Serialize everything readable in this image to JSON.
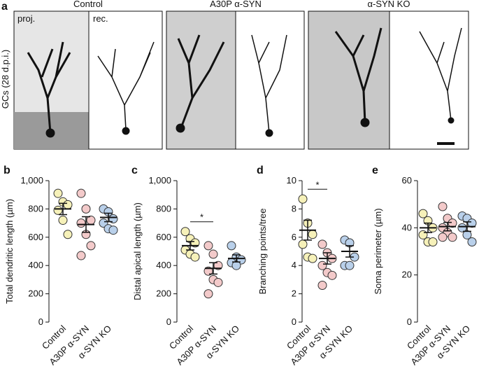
{
  "panel_a": {
    "panel": "a",
    "conditions": [
      "Control",
      "A30P α-SYN",
      "α-SYN KO"
    ],
    "y_label": "GCs (28 d.p.i.)",
    "proj_label": "proj.",
    "rec_label": "rec."
  },
  "chart_data": [
    {
      "type": "dotplot",
      "panel": "b",
      "y_label": "Total dendritic length (µm)",
      "categories": [
        "Control",
        "A30P α-SYN",
        "α-SYN KO"
      ],
      "colors": [
        "#f6f1b9",
        "#f3caca",
        "#b9d0ea"
      ],
      "points": [
        [
          910,
          850,
          830,
          790,
          720,
          620
        ],
        [
          910,
          800,
          720,
          700,
          620,
          540,
          470
        ],
        [
          800,
          780,
          730,
          700,
          660,
          650
        ]
      ],
      "means": [
        800,
        690,
        740
      ],
      "sems": [
        40,
        55,
        30
      ],
      "ylim": [
        0,
        1000
      ],
      "yticks": [
        0,
        200,
        400,
        600,
        800,
        {
          "value": 1000,
          "label": "1,000"
        }
      ]
    },
    {
      "type": "dotplot",
      "panel": "c",
      "y_label": "Distal apical length (µm)",
      "annotation": "*",
      "categories": [
        "Control",
        "A30P α-SYN",
        "α-SYN KO"
      ],
      "colors": [
        "#f6f1b9",
        "#f3caca",
        "#b9d0ea"
      ],
      "points": [
        [
          640,
          590,
          560,
          510,
          480,
          460
        ],
        [
          540,
          480,
          400,
          360,
          300,
          280,
          200
        ],
        [
          540,
          460,
          440,
          420,
          400
        ]
      ],
      "means": [
        540,
        380,
        450
      ],
      "sems": [
        30,
        40,
        25
      ],
      "ylim": [
        0,
        1000
      ],
      "yticks": [
        0,
        200,
        400,
        600,
        800,
        {
          "value": 1000,
          "label": "1,000"
        }
      ]
    },
    {
      "type": "dotplot",
      "panel": "d",
      "y_label": "Branching points/tree",
      "annotation": "*",
      "categories": [
        "Control",
        "A30P α-SYN",
        "α-SYN KO"
      ],
      "colors": [
        "#f6f1b9",
        "#f3caca",
        "#b9d0ea"
      ],
      "points": [
        [
          8.7,
          7.0,
          6.2,
          5.5,
          4.6,
          4.5
        ],
        [
          5.5,
          4.9,
          4.5,
          4.0,
          3.5,
          3.3,
          2.6
        ],
        [
          5.8,
          5.6,
          4.6,
          4.0,
          4.0
        ]
      ],
      "means": [
        6.5,
        4.5,
        5.0
      ],
      "sems": [
        0.7,
        0.4,
        0.4
      ],
      "ylim": [
        0,
        10
      ],
      "yticks": [
        0,
        2,
        4,
        6,
        8,
        10
      ]
    },
    {
      "type": "dotplot",
      "panel": "e",
      "y_label": "Soma perimeter (µm)",
      "categories": [
        "Control",
        "A30P α-SYN",
        "α-SYN KO"
      ],
      "colors": [
        "#f6f1b9",
        "#f3caca",
        "#b9d0ea"
      ],
      "points": [
        [
          46,
          43,
          40,
          37,
          34,
          34
        ],
        [
          49,
          44,
          42,
          40,
          38,
          36,
          36
        ],
        [
          45,
          44,
          42,
          40,
          37,
          34
        ]
      ],
      "means": [
        40,
        40.5,
        40.5
      ],
      "sems": [
        2,
        1.8,
        2
      ],
      "ylim": [
        0,
        60
      ],
      "yticks": [
        0,
        20,
        40,
        60
      ]
    }
  ]
}
